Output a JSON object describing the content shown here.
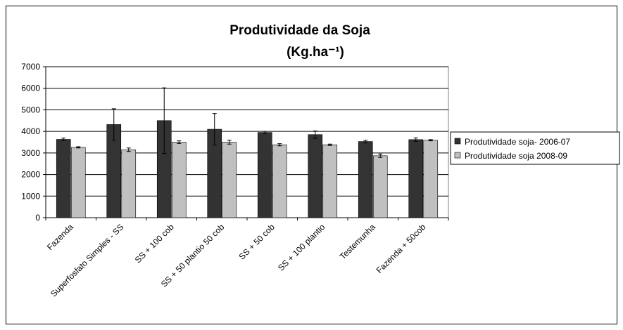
{
  "chart_data": {
    "type": "bar",
    "title": "Produtividade da Soja",
    "subtitle": "(Kg.ha⁻¹)",
    "categories": [
      "Fazenda",
      "Superfosfato Simples - SS",
      "SS + 100 cob",
      "SS + 50 plantio 50 cob",
      "SS + 50 cob",
      "SS + 100 plantio",
      "Testemunha",
      "Fazenda + 50cob"
    ],
    "series": [
      {
        "name": "Produtividade soja- 2006-07",
        "color": "#333333",
        "values": [
          3630,
          4320,
          4500,
          4100,
          3950,
          3850,
          3530,
          3620
        ],
        "errors": [
          60,
          730,
          1520,
          730,
          50,
          170,
          60,
          80
        ]
      },
      {
        "name": "Produtividade soja 2008-09",
        "color": "#c0c0c0",
        "values": [
          3260,
          3150,
          3500,
          3500,
          3380,
          3380,
          2870,
          3590
        ],
        "errors": [
          30,
          80,
          60,
          90,
          50,
          30,
          80,
          30
        ]
      }
    ],
    "ylim": [
      0,
      7000
    ],
    "yticks": [
      0,
      1000,
      2000,
      3000,
      4000,
      5000,
      6000,
      7000
    ],
    "grid": true,
    "legend": "right"
  }
}
